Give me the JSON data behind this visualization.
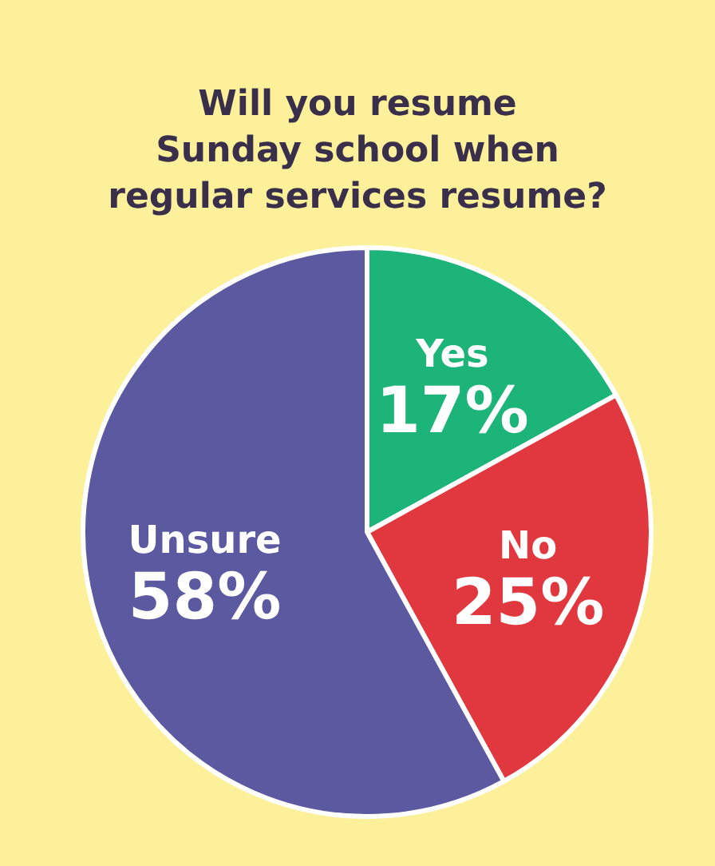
{
  "chart_data": {
    "type": "pie",
    "title": "Will you resume\nSunday school when\nregular services resume?",
    "categories": [
      "Yes",
      "No",
      "Unsure"
    ],
    "values": [
      17,
      25,
      58
    ],
    "value_labels": [
      "17%",
      "25%",
      "58%"
    ],
    "colors": [
      "#1db47a",
      "#e1383f",
      "#5b599f"
    ],
    "legend": false
  }
}
